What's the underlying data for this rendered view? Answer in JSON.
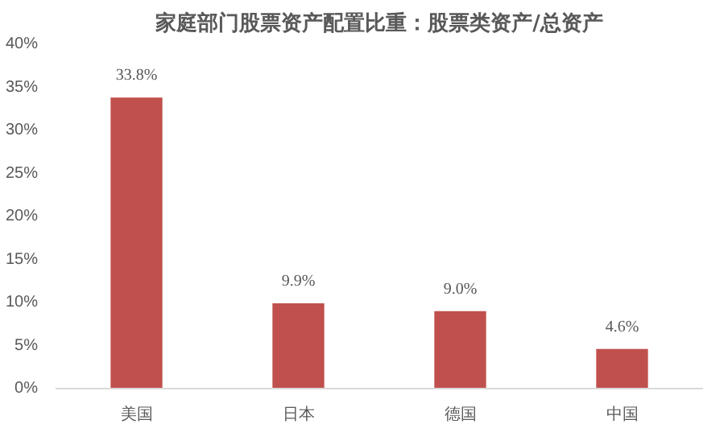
{
  "chart_data": {
    "type": "bar",
    "title": "家庭部门股票资产配置比重：股票类资产/总资产",
    "categories": [
      "美国",
      "日本",
      "德国",
      "中国"
    ],
    "values": [
      33.8,
      9.9,
      9.0,
      4.6
    ],
    "value_labels": [
      "33.8%",
      "9.9%",
      "9.0%",
      "4.6%"
    ],
    "color": "#c0504d",
    "ylim": [
      0,
      40
    ],
    "yticks": [
      {
        "value": 0,
        "label": "0%"
      },
      {
        "value": 5,
        "label": "5%"
      },
      {
        "value": 10,
        "label": "10%"
      },
      {
        "value": 15,
        "label": "15%"
      },
      {
        "value": 20,
        "label": "20%"
      },
      {
        "value": 25,
        "label": "25%"
      },
      {
        "value": 30,
        "label": "30%"
      },
      {
        "value": 35,
        "label": "35%"
      },
      {
        "value": 40,
        "label": "40%"
      }
    ],
    "grid": false
  }
}
